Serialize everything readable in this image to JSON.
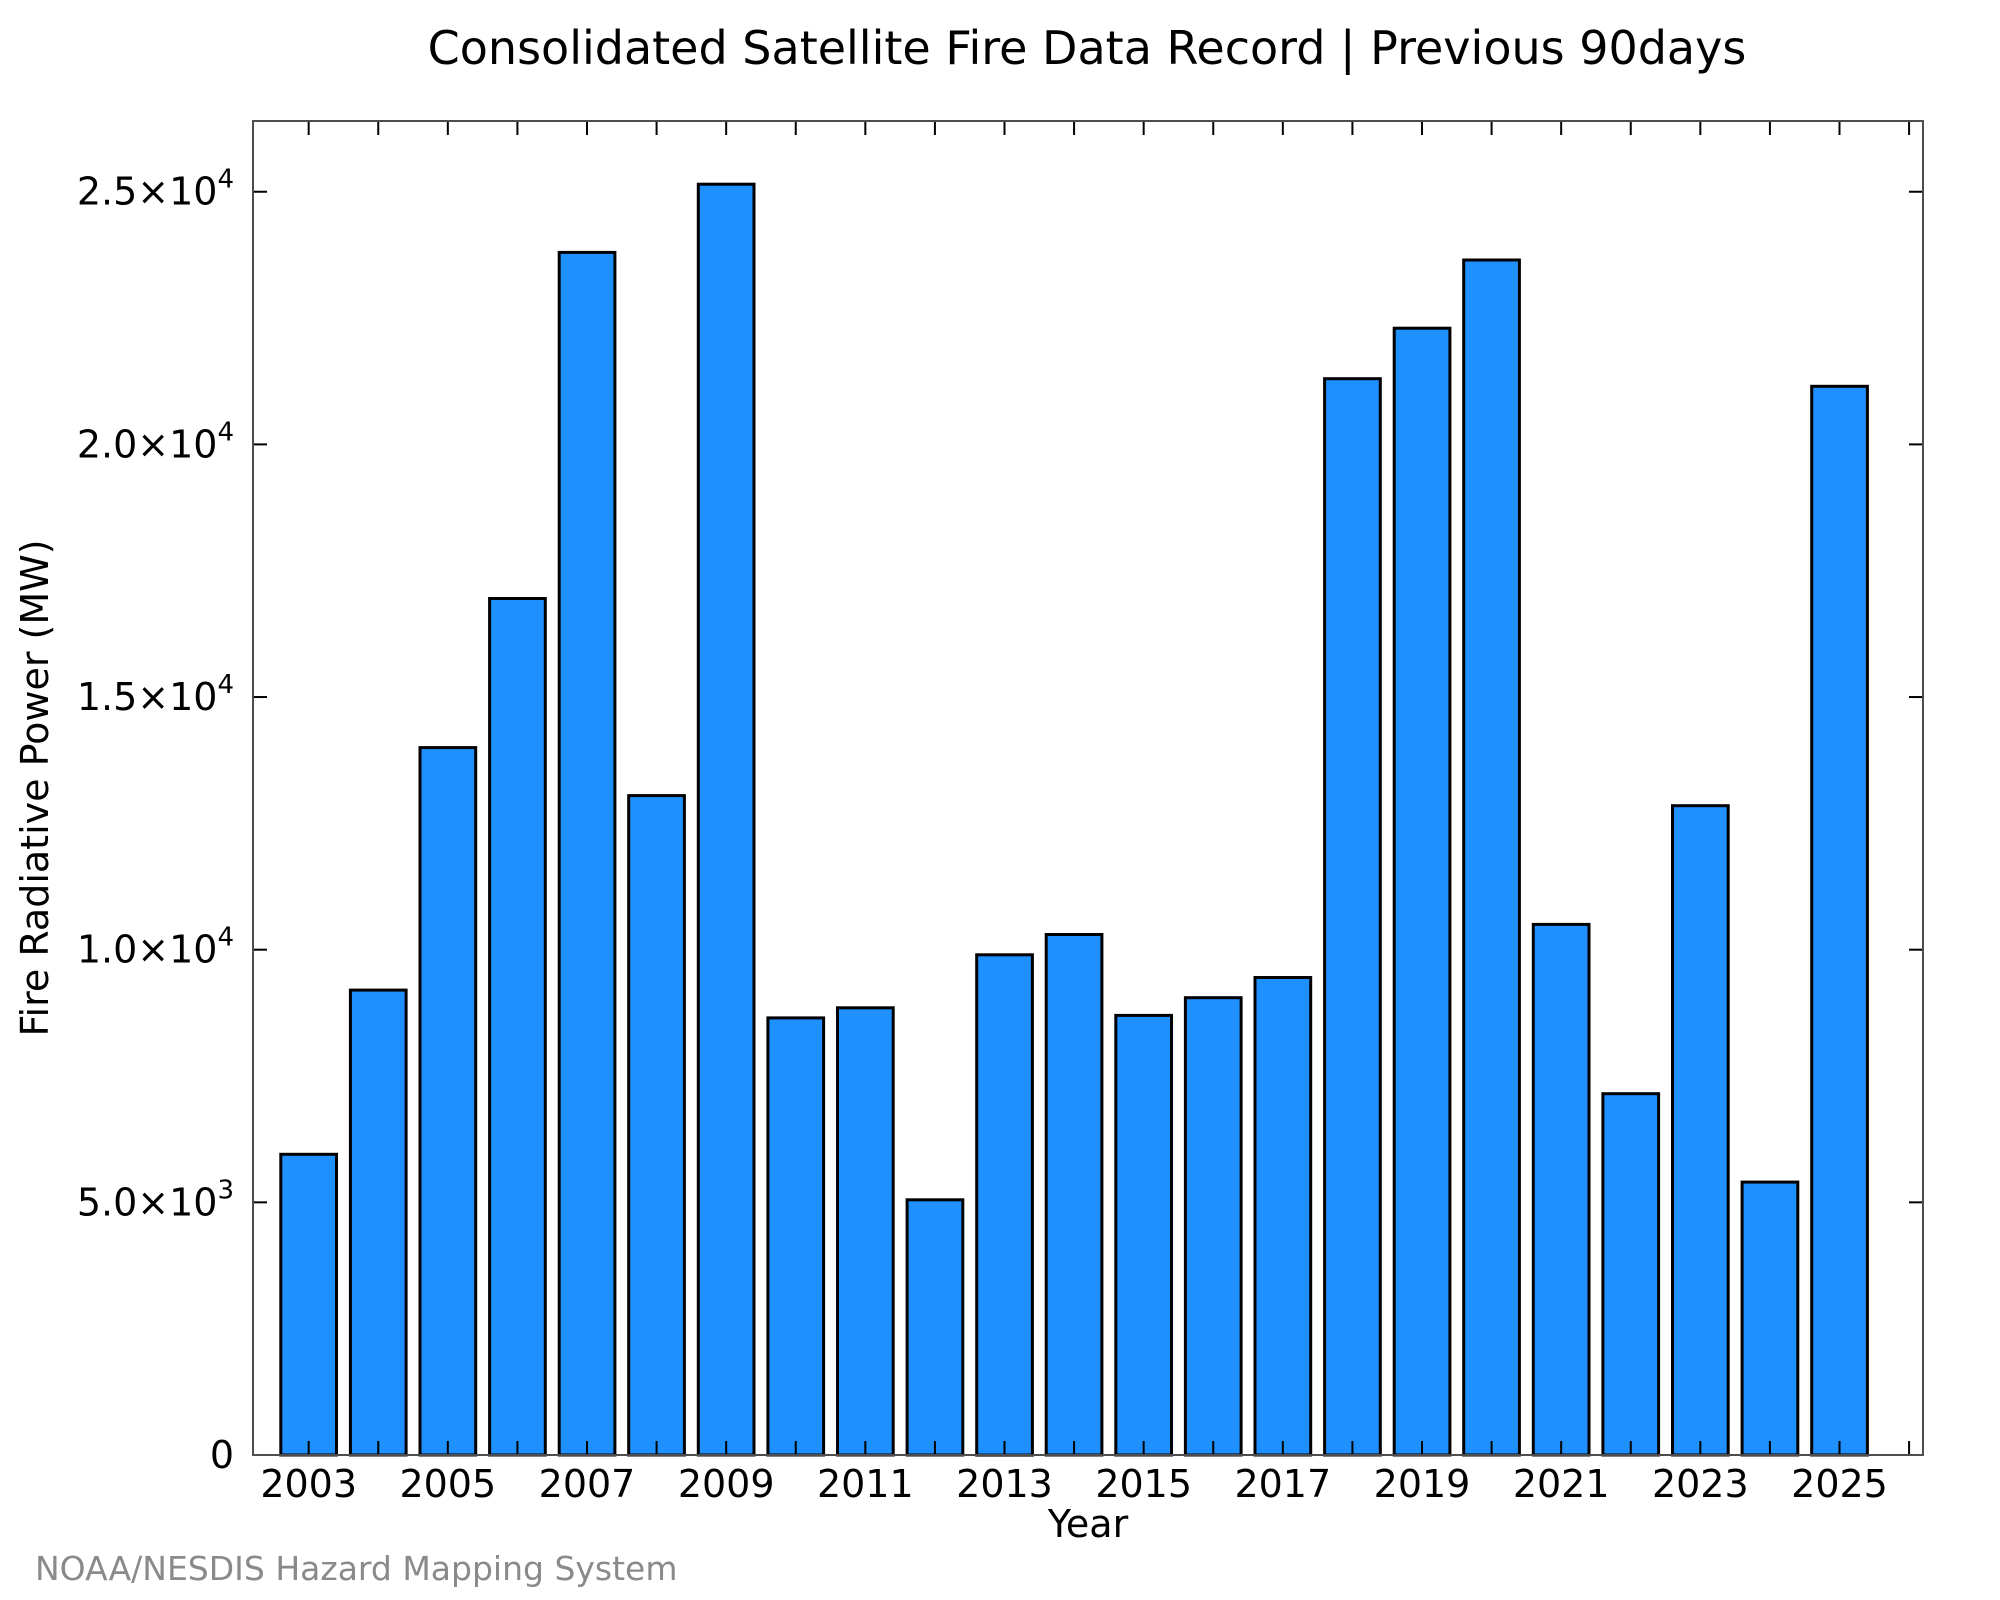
{
  "chart_data": {
    "type": "bar",
    "title": "Consolidated Satellite Fire Data Record | Previous 90days",
    "xlabel": "Year",
    "ylabel": "Fire Radiative Power (MW)",
    "categories": [
      "2003",
      "2004",
      "2005",
      "2006",
      "2007",
      "2008",
      "2009",
      "2010",
      "2011",
      "2012",
      "2013",
      "2014",
      "2015",
      "2016",
      "2017",
      "2018",
      "2019",
      "2020",
      "2021",
      "2022",
      "2023",
      "2024",
      "2025"
    ],
    "values": [
      5950,
      9200,
      14000,
      16950,
      23800,
      13050,
      25150,
      8650,
      8850,
      5050,
      9900,
      10300,
      8700,
      9050,
      9450,
      21300,
      22300,
      23650,
      10500,
      7150,
      12850,
      5400,
      21150
    ],
    "ylim": [
      0,
      26400
    ],
    "xlim": [
      2002.2,
      2026.2
    ],
    "y_ticks": [
      {
        "value": 0,
        "mantissa": "0",
        "exponent": ""
      },
      {
        "value": 5000,
        "mantissa": "5.0×10",
        "exponent": "3"
      },
      {
        "value": 10000,
        "mantissa": "1.0×10",
        "exponent": "4"
      },
      {
        "value": 15000,
        "mantissa": "1.5×10",
        "exponent": "4"
      },
      {
        "value": 20000,
        "mantissa": "2.0×10",
        "exponent": "4"
      },
      {
        "value": 25000,
        "mantissa": "2.5×10",
        "exponent": "4"
      }
    ],
    "x_tick_labels": [
      "2003",
      "2005",
      "2007",
      "2009",
      "2011",
      "2013",
      "2015",
      "2017",
      "2019",
      "2021",
      "2023",
      "2025"
    ],
    "bar_color": "#1e90ff",
    "grid": false,
    "legend": "none"
  },
  "credit": "NOAA/NESDIS Hazard Mapping System"
}
